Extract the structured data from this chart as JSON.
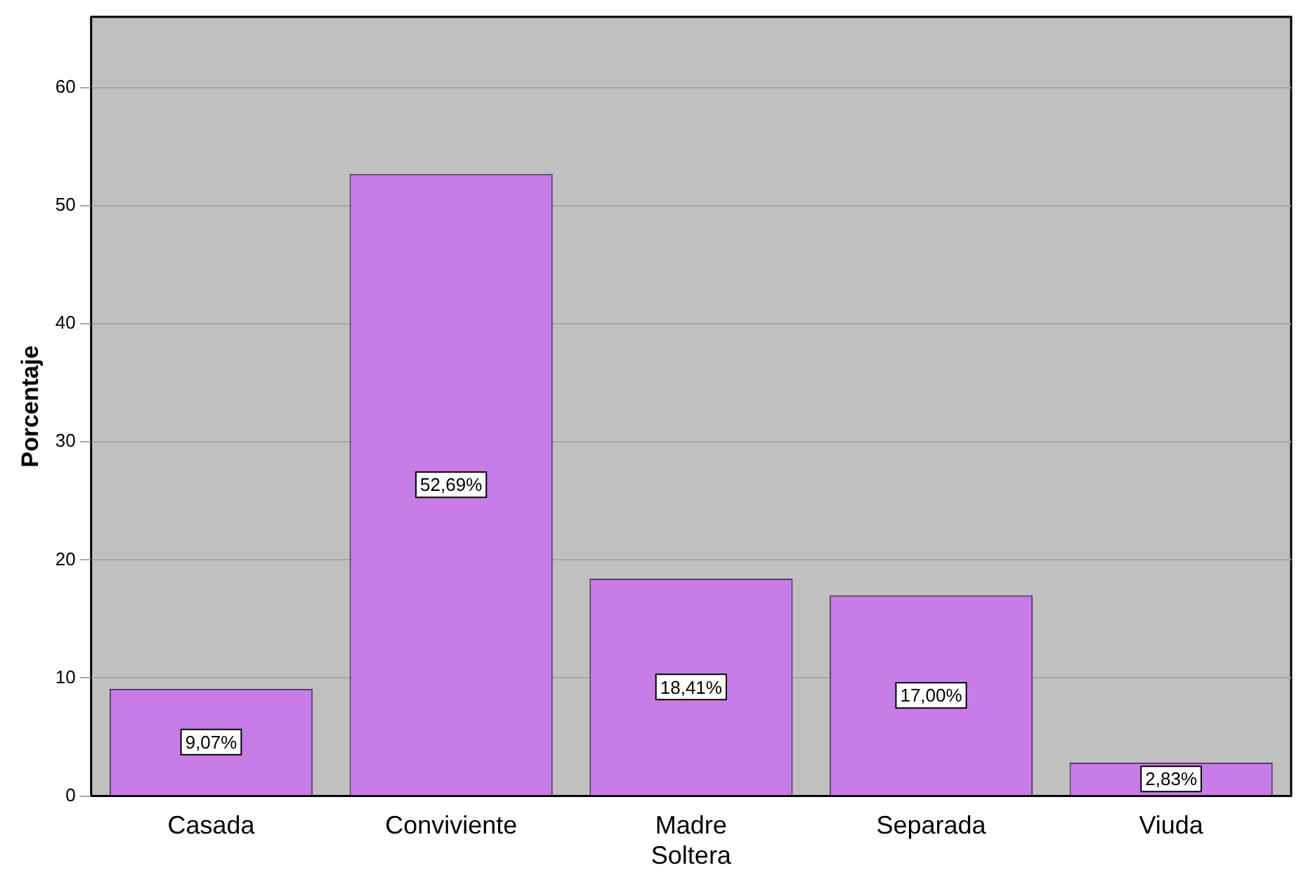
{
  "chart_data": {
    "type": "bar",
    "ylabel": "Porcentaje",
    "categories": [
      "Casada",
      "Conviviente",
      "Madre Soltera",
      "Separada",
      "Viuda"
    ],
    "values": [
      9.07,
      52.69,
      18.41,
      17.0,
      2.83
    ],
    "value_labels": [
      "9,07%",
      "52,69%",
      "18,41%",
      "17,00%",
      "2,83%"
    ],
    "color": "#c87de6",
    "ylim": [
      0,
      66
    ],
    "yticks": [
      0,
      10,
      20,
      30,
      40,
      50,
      60
    ],
    "grid": "y",
    "legend": false
  }
}
